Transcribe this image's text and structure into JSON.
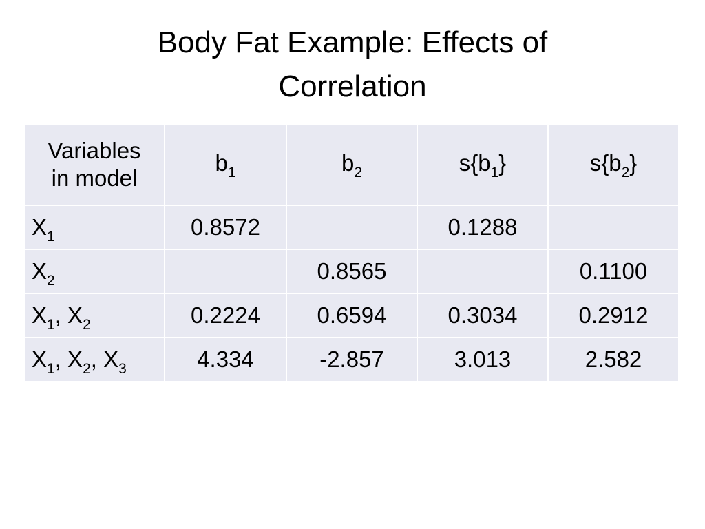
{
  "title": {
    "line1": "Body Fat Example: Effects of",
    "line2": "Correlation"
  },
  "table": {
    "header": {
      "variables_line1": "Variables",
      "variables_line2": "in model",
      "b1": {
        "base": "b",
        "sub": "1"
      },
      "b2": {
        "base": "b",
        "sub": "2"
      },
      "sb1": {
        "pre": "s{b",
        "sub": "1",
        "post": "}"
      },
      "sb2": {
        "pre": "s{b",
        "sub": "2",
        "post": "}"
      }
    },
    "rows": [
      {
        "label": [
          {
            "base": "X",
            "sub": "1"
          }
        ],
        "b1": "0.8572",
        "b2": "",
        "sb1": "0.1288",
        "sb2": ""
      },
      {
        "label": [
          {
            "base": "X",
            "sub": "2"
          }
        ],
        "b1": "",
        "b2": "0.8565",
        "sb1": "",
        "sb2": "0.1100"
      },
      {
        "label": [
          {
            "base": "X",
            "sub": "1"
          },
          {
            "base": "X",
            "sub": "2"
          }
        ],
        "b1": "0.2224",
        "b2": "0.6594",
        "sb1": "0.3034",
        "sb2": "0.2912"
      },
      {
        "label": [
          {
            "base": "X",
            "sub": "1"
          },
          {
            "base": "X",
            "sub": "2"
          },
          {
            "base": "X",
            "sub": "3"
          }
        ],
        "b1": "4.334",
        "b2": "-2.857",
        "sb1": "3.013",
        "sb2": "2.582"
      }
    ],
    "label_separator": ", "
  }
}
